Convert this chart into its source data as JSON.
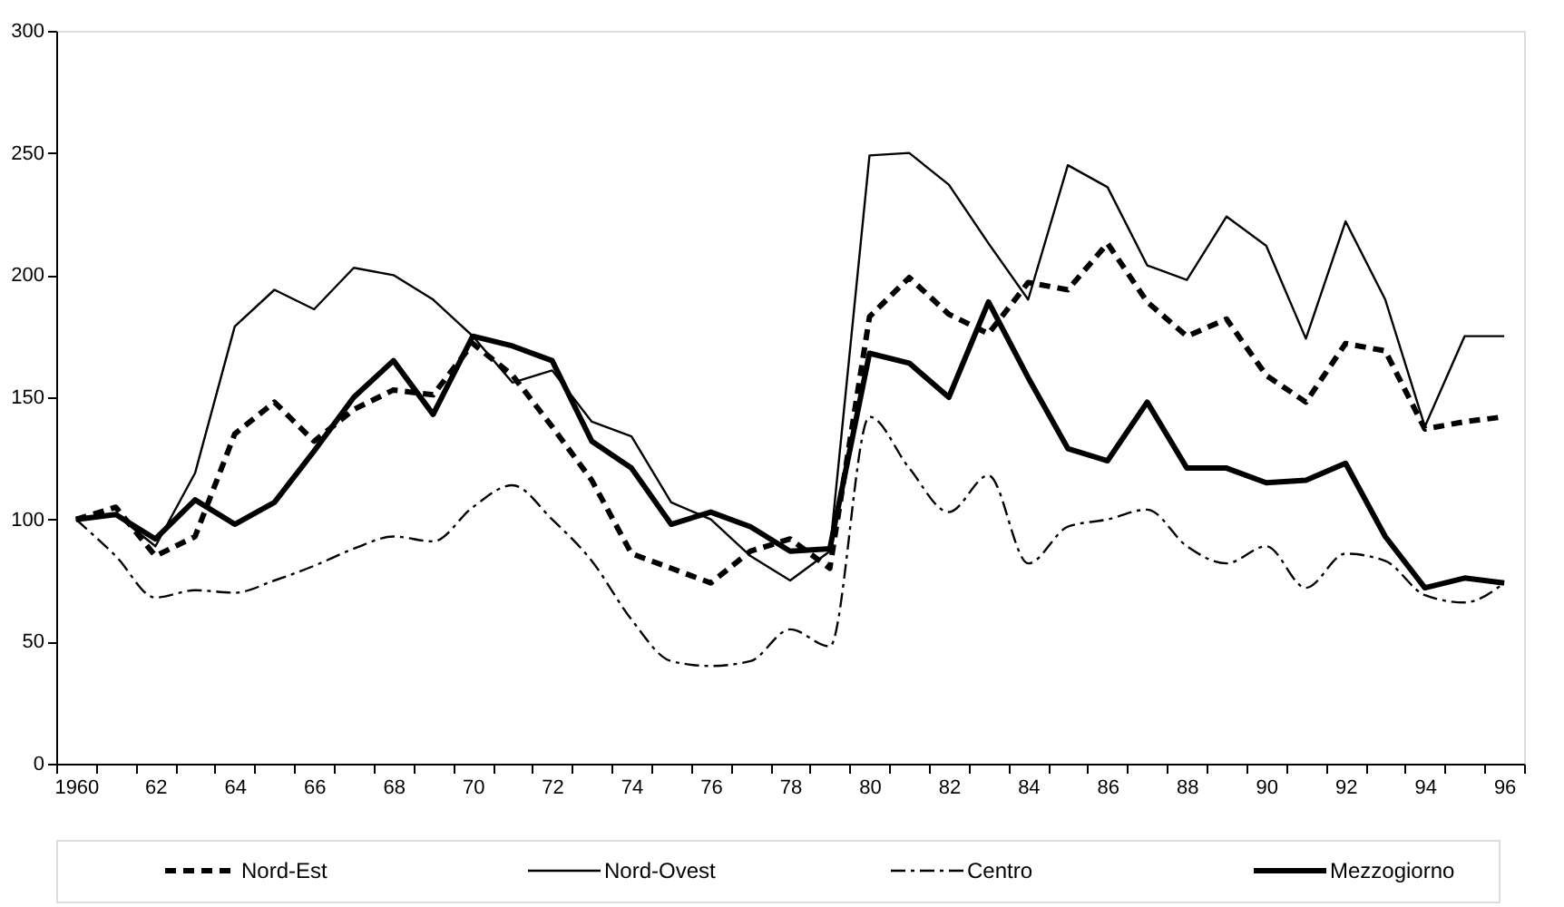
{
  "chart_data": {
    "type": "line",
    "categories": [
      "1960",
      null,
      "62",
      null,
      "64",
      null,
      "66",
      null,
      "68",
      null,
      "70",
      null,
      "72",
      null,
      "74",
      null,
      "76",
      null,
      "78",
      null,
      "80",
      null,
      "82",
      null,
      "84",
      null,
      "86",
      null,
      "88",
      null,
      "90",
      null,
      "92",
      null,
      "94",
      null,
      "96"
    ],
    "series": [
      {
        "name": "Nord-Est",
        "color": "#000000",
        "line_style": "dashed",
        "values": [
          100,
          105,
          85,
          93,
          135,
          148,
          132,
          145,
          153,
          151,
          172,
          159,
          138,
          116,
          86,
          80,
          74,
          87,
          92,
          80,
          183,
          199,
          184,
          176,
          197,
          194,
          213,
          189,
          175,
          182,
          159,
          148,
          172,
          169,
          137,
          140,
          142
        ]
      },
      {
        "name": "Nord-Ovest",
        "color": "#000000",
        "line_style": "solid",
        "values": [
          100,
          102,
          89,
          119,
          179,
          194,
          186,
          203,
          200,
          190,
          175,
          156,
          161,
          140,
          134,
          107,
          100,
          85,
          75,
          87,
          249,
          250,
          237,
          213,
          190,
          245,
          236,
          204,
          198,
          224,
          212,
          174,
          222,
          190,
          138,
          175,
          175
        ]
      },
      {
        "name": "Centro",
        "color": "#000000",
        "line_style": "dashdot",
        "values": [
          100,
          85,
          68,
          71,
          70,
          75,
          81,
          88,
          93,
          91,
          105,
          114,
          100,
          83,
          59,
          42,
          40,
          42,
          55,
          48,
          142,
          121,
          103,
          118,
          82,
          97,
          100,
          104,
          89,
          82,
          89,
          72,
          86,
          83,
          69,
          66,
          74
        ]
      },
      {
        "name": "Mezzogiorno",
        "color": "#000000",
        "line_style": "solid",
        "values": [
          100,
          102,
          92,
          108,
          98,
          107,
          128,
          150,
          165,
          143,
          175,
          171,
          165,
          132,
          121,
          98,
          103,
          97,
          87,
          88,
          168,
          164,
          150,
          189,
          158,
          129,
          124,
          148,
          121,
          121,
          115,
          116,
          123,
          93,
          72,
          76,
          74
        ]
      }
    ],
    "ylim": [
      0,
      300
    ],
    "yticks": [
      0,
      50,
      100,
      150,
      200,
      250,
      300
    ],
    "grid": false,
    "legend": "bottom",
    "marker": "none"
  }
}
